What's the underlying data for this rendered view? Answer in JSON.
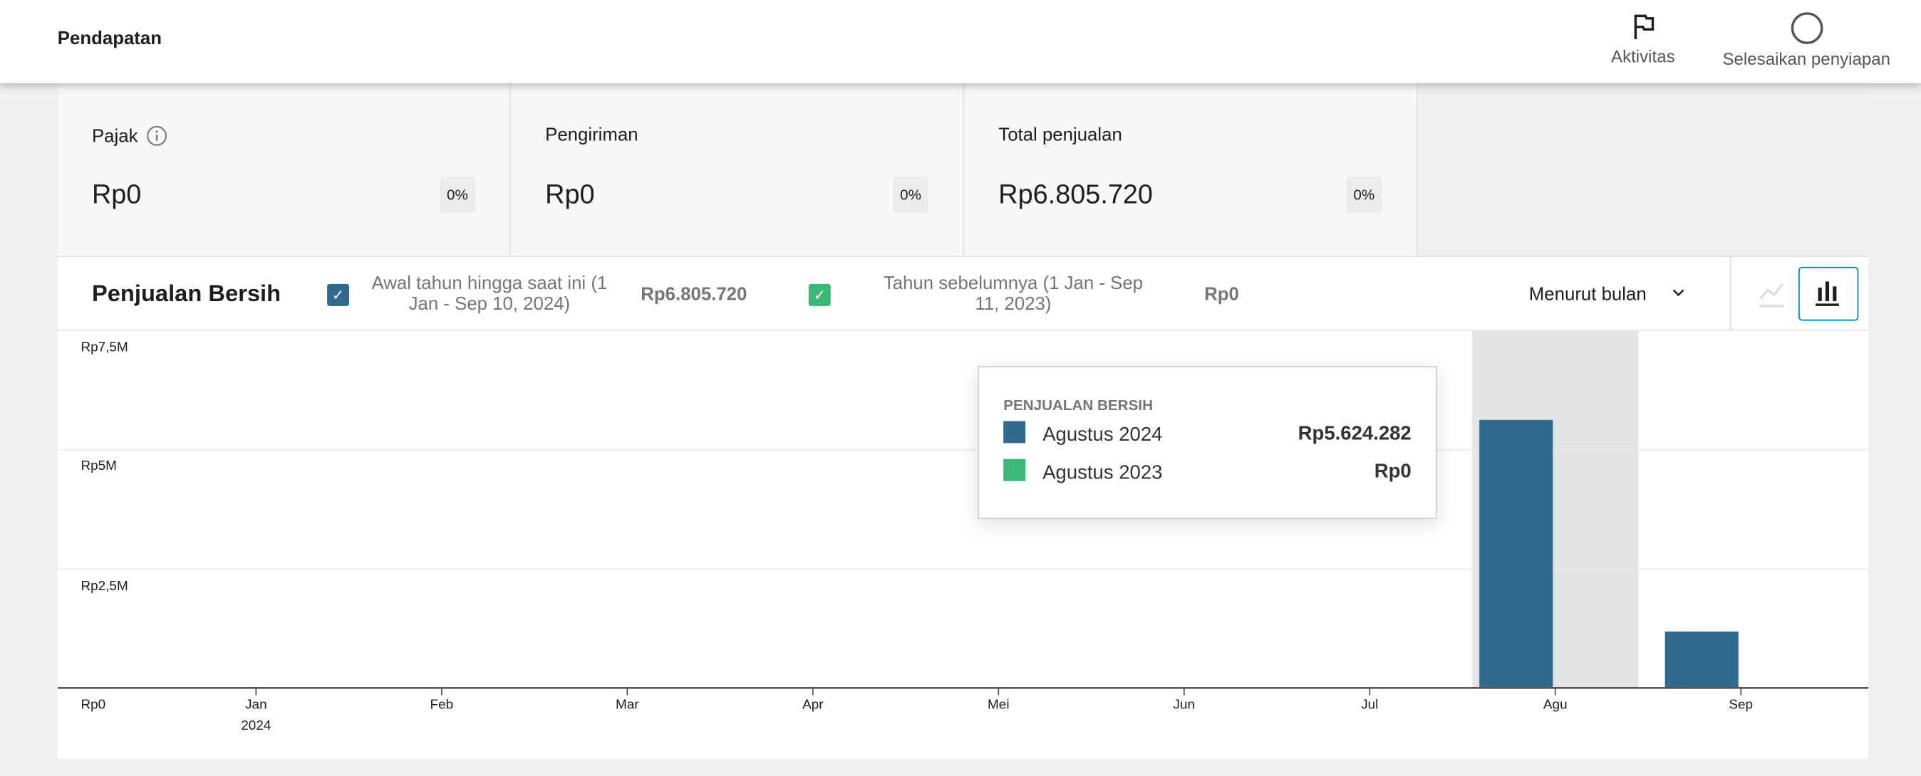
{
  "header": {
    "title": "Pendapatan",
    "activity_label": "Aktivitas",
    "setup_label": "Selesaikan penyiapan"
  },
  "cards": [
    {
      "label": "Pajak",
      "value": "Rp0",
      "delta": "0%",
      "info_icon": "info-icon"
    },
    {
      "label": "Pengiriman",
      "value": "Rp0",
      "delta": "0%"
    },
    {
      "label": "Total penjualan",
      "value": "Rp6.805.720",
      "delta": "0%"
    }
  ],
  "chart_header": {
    "title": "Penjualan Bersih",
    "legend": [
      {
        "label": "Awal tahun hingga saat ini (1 Jan - Sep 10, 2024)",
        "value": "Rp6.805.720",
        "color": "#316a8f",
        "checked": true
      },
      {
        "label": "Tahun sebelumnya (1 Jan - Sep 11, 2023)",
        "value": "Rp0",
        "color": "#3bb878",
        "checked": true
      }
    ],
    "interval": "Menurut bulan",
    "chart_type_selected": "bar"
  },
  "tooltip": {
    "title": "PENJUALAN BERSIH",
    "rows": [
      {
        "label": "Agustus 2024",
        "value": "Rp5.624.282",
        "color": "#316a8f"
      },
      {
        "label": "Agustus 2023",
        "value": "Rp0",
        "color": "#3bb878"
      }
    ]
  },
  "chart_data": {
    "type": "bar",
    "categories": [
      "Jan",
      "Feb",
      "Mar",
      "Apr",
      "Mei",
      "Jun",
      "Jul",
      "Agu",
      "Sep"
    ],
    "x_sublabel": "2024",
    "series": [
      {
        "name": "Awal tahun hingga saat ini (1 Jan - Sep 10, 2024)",
        "color": "#316a8f",
        "values": [
          0,
          0,
          0,
          0,
          0,
          0,
          0,
          5624282,
          1181438
        ]
      },
      {
        "name": "Tahun sebelumnya (1 Jan - Sep 11, 2023)",
        "color": "#3bb878",
        "values": [
          0,
          0,
          0,
          0,
          0,
          0,
          0,
          0,
          0
        ]
      }
    ],
    "yticks": [
      "Rp0",
      "Rp2,5M",
      "Rp5M",
      "Rp7,5M"
    ],
    "ytick_values": [
      0,
      2500000,
      5000000,
      7500000
    ],
    "ylim": [
      0,
      7500000
    ],
    "highlighted": "Agu",
    "grid": true
  }
}
